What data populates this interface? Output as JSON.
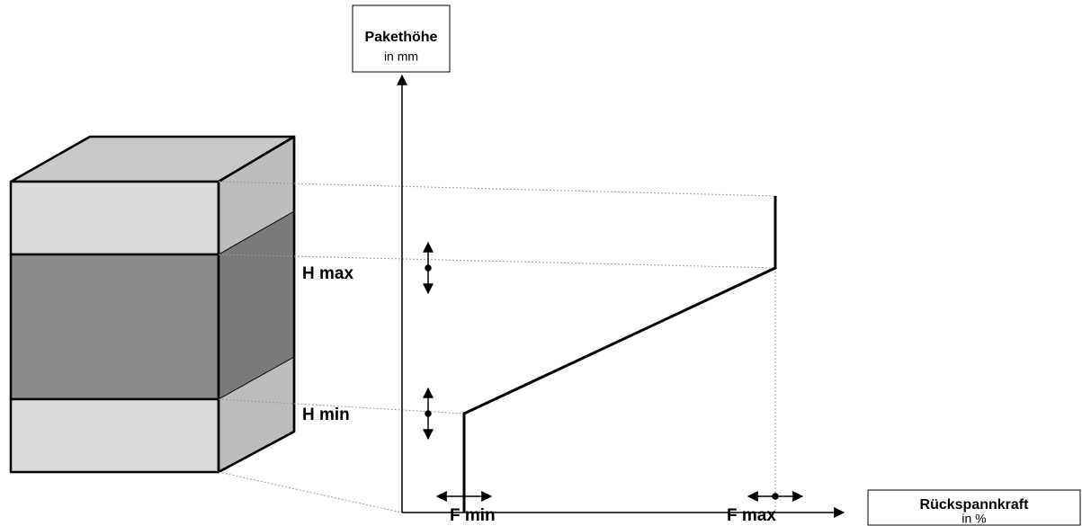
{
  "y_axis": {
    "title": "Pakethöhe",
    "unit": "in mm"
  },
  "x_axis": {
    "title": "Rückspannkraft",
    "unit": "in %"
  },
  "labels": {
    "h_max": "H max",
    "h_min": "H min",
    "f_min": "F min",
    "f_max": "F max"
  }
}
